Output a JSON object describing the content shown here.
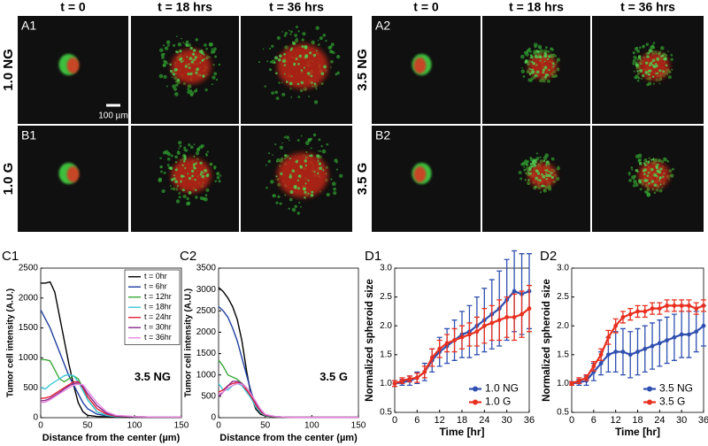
{
  "images": {
    "groups": [
      {
        "column_headers": [
          "t = 0",
          "t = 18 hrs",
          "t = 36 hrs"
        ],
        "rows": [
          {
            "condition": "1.0 NG",
            "panel": "A1"
          },
          {
            "condition": "1.0 G",
            "panel": "B1"
          }
        ],
        "scale_bar": "100 µm"
      },
      {
        "column_headers": [
          "t = 0",
          "t = 18 hrs",
          "t = 36 hrs"
        ],
        "rows": [
          {
            "condition": "3.5 NG",
            "panel": "A2"
          },
          {
            "condition": "3.5 G",
            "panel": "B2"
          }
        ]
      }
    ]
  },
  "chart_data": [
    {
      "type": "line",
      "panel": "C1",
      "annotation": "3.5 NG",
      "x_label": "Distance from the center (µm)",
      "y_label": "Tumor cell intensity (A.U.)",
      "x": [
        0,
        5,
        10,
        15,
        20,
        25,
        30,
        35,
        40,
        45,
        50,
        60,
        70,
        80,
        100,
        120,
        150
      ],
      "xlim": [
        0,
        150
      ],
      "xticks": [
        0,
        50,
        100,
        150
      ],
      "ylim": [
        0,
        2500
      ],
      "yticks": [
        0,
        500,
        1000,
        1500,
        2000,
        2500
      ],
      "legend": "upper right",
      "series": [
        {
          "name": "t = 0hr",
          "color": "#000000",
          "values": [
            2250,
            2250,
            2270,
            2100,
            1700,
            1300,
            900,
            550,
            250,
            100,
            40,
            20,
            15,
            10,
            10,
            10,
            10
          ]
        },
        {
          "name": "t = 6hr",
          "color": "#1f3f9f",
          "values": [
            1800,
            1650,
            1500,
            1300,
            1100,
            900,
            700,
            550,
            400,
            250,
            150,
            60,
            30,
            20,
            15,
            10,
            10
          ]
        },
        {
          "name": "t = 12hr",
          "color": "#3aa83a",
          "values": [
            970,
            970,
            950,
            800,
            650,
            600,
            650,
            700,
            650,
            500,
            300,
            100,
            40,
            20,
            15,
            10,
            10
          ]
        },
        {
          "name": "t = 18hr",
          "color": "#3fc8d8",
          "values": [
            500,
            480,
            550,
            600,
            650,
            700,
            720,
            700,
            600,
            450,
            300,
            100,
            40,
            20,
            15,
            10,
            10
          ]
        },
        {
          "name": "t = 24hr",
          "color": "#e0203a",
          "values": [
            320,
            330,
            350,
            400,
            450,
            500,
            550,
            600,
            600,
            500,
            350,
            150,
            60,
            25,
            15,
            10,
            10
          ]
        },
        {
          "name": "t = 30hr",
          "color": "#8a2a8a",
          "values": [
            280,
            290,
            320,
            370,
            420,
            480,
            530,
            570,
            580,
            520,
            400,
            200,
            80,
            30,
            15,
            10,
            10
          ]
        },
        {
          "name": "t = 36hr",
          "color": "#e88ae0",
          "values": [
            250,
            260,
            300,
            350,
            400,
            450,
            500,
            540,
            560,
            550,
            450,
            250,
            100,
            40,
            20,
            10,
            10
          ]
        }
      ]
    },
    {
      "type": "line",
      "panel": "C2",
      "annotation": "3.5 G",
      "x_label": "Distance from the center (µm)",
      "y_label": "Tumor cell intensity (A.U.)",
      "x": [
        0,
        5,
        10,
        15,
        20,
        25,
        30,
        35,
        40,
        45,
        50,
        60,
        70,
        80,
        100,
        120,
        150
      ],
      "xlim": [
        0,
        150
      ],
      "xticks": [
        0,
        50,
        100,
        150
      ],
      "ylim": [
        0,
        3500
      ],
      "yticks": [
        0,
        500,
        1000,
        1500,
        2000,
        2500,
        3000,
        3500
      ],
      "series": [
        {
          "color": "#000000",
          "values": [
            3050,
            2950,
            2800,
            2600,
            2300,
            1800,
            1100,
            500,
            200,
            80,
            40,
            20,
            15,
            10,
            10,
            10,
            10
          ]
        },
        {
          "color": "#1f3f9f",
          "values": [
            2600,
            2500,
            2350,
            2100,
            1800,
            1400,
            1000,
            600,
            300,
            120,
            50,
            25,
            15,
            10,
            10,
            10,
            10
          ]
        },
        {
          "color": "#3aa83a",
          "values": [
            1350,
            1200,
            1000,
            950,
            900,
            800,
            650,
            450,
            250,
            120,
            50,
            25,
            15,
            10,
            10,
            10,
            10
          ]
        },
        {
          "color": "#3fc8d8",
          "values": [
            800,
            650,
            650,
            750,
            800,
            750,
            600,
            450,
            250,
            120,
            50,
            25,
            15,
            10,
            10,
            10,
            10
          ]
        },
        {
          "color": "#e0203a",
          "values": [
            600,
            650,
            750,
            800,
            820,
            780,
            650,
            500,
            300,
            150,
            60,
            25,
            15,
            10,
            10,
            10,
            10
          ]
        },
        {
          "color": "#8a2a8a",
          "values": [
            500,
            600,
            750,
            850,
            850,
            800,
            700,
            550,
            350,
            180,
            70,
            30,
            15,
            10,
            10,
            10,
            10
          ]
        },
        {
          "color": "#e88ae0",
          "values": [
            550,
            600,
            700,
            750,
            800,
            780,
            700,
            550,
            380,
            200,
            80,
            30,
            15,
            10,
            10,
            10,
            10
          ]
        }
      ]
    },
    {
      "type": "line",
      "panel": "D1",
      "x_label": "Time [hr]",
      "y_label": "Normalized spheroid size",
      "markers": true,
      "legend": "lower right",
      "x": [
        0,
        2,
        4,
        6,
        8,
        10,
        12,
        14,
        16,
        18,
        20,
        22,
        24,
        26,
        28,
        30,
        32,
        34,
        36
      ],
      "xlim": [
        0,
        36
      ],
      "xticks": [
        0,
        6,
        12,
        18,
        24,
        30,
        36
      ],
      "ylim": [
        0.5,
        3
      ],
      "yticks": [
        0.5,
        {
          "value": 1,
          "label": "1.0"
        },
        1.5,
        {
          "value": 2,
          "label": "2.0"
        },
        2.5,
        {
          "value": 3,
          "label": "3.0"
        }
      ],
      "series": [
        {
          "name": "1.0 NG",
          "color": "#3050b0",
          "values": [
            1.0,
            1.02,
            1.05,
            1.1,
            1.2,
            1.4,
            1.55,
            1.65,
            1.75,
            1.85,
            1.9,
            2.0,
            2.1,
            2.2,
            2.3,
            2.45,
            2.6,
            2.55,
            2.6
          ],
          "errors": [
            0.05,
            0.05,
            0.08,
            0.1,
            0.15,
            0.2,
            0.25,
            0.3,
            0.35,
            0.4,
            0.45,
            0.5,
            0.55,
            0.6,
            0.65,
            0.7,
            0.7,
            0.7,
            0.65
          ]
        },
        {
          "name": "1.0 G",
          "color": "#e83020",
          "values": [
            1.0,
            1.05,
            1.08,
            1.1,
            1.2,
            1.45,
            1.6,
            1.7,
            1.75,
            1.8,
            1.85,
            1.9,
            2.0,
            2.05,
            2.1,
            2.15,
            2.15,
            2.2,
            2.3
          ],
          "errors": [
            0.05,
            0.05,
            0.05,
            0.08,
            0.1,
            0.15,
            0.15,
            0.15,
            0.2,
            0.2,
            0.2,
            0.25,
            0.3,
            0.3,
            0.35,
            0.35,
            0.4,
            0.4,
            0.4
          ]
        }
      ]
    },
    {
      "type": "line",
      "panel": "D2",
      "x_label": "Time [hr]",
      "y_label": "Normalized spheroid size",
      "markers": true,
      "legend": "lower right",
      "x": [
        0,
        2,
        4,
        6,
        8,
        10,
        12,
        14,
        16,
        18,
        20,
        22,
        24,
        26,
        28,
        30,
        32,
        34,
        36
      ],
      "xlim": [
        0,
        36
      ],
      "xticks": [
        0,
        6,
        12,
        18,
        24,
        30,
        36
      ],
      "ylim": [
        0.5,
        3
      ],
      "yticks": [
        0.5,
        {
          "value": 1,
          "label": "1.0"
        },
        1.5,
        {
          "value": 2,
          "label": "2.0"
        },
        2.5,
        {
          "value": 3,
          "label": "3.0"
        }
      ],
      "series": [
        {
          "name": "3.5 NG",
          "color": "#3050b0",
          "values": [
            1.0,
            1.02,
            1.05,
            1.2,
            1.35,
            1.5,
            1.55,
            1.55,
            1.5,
            1.55,
            1.6,
            1.65,
            1.7,
            1.75,
            1.8,
            1.85,
            1.85,
            1.9,
            2.0
          ],
          "errors": [
            0.03,
            0.05,
            0.08,
            0.15,
            0.2,
            0.3,
            0.35,
            0.4,
            0.4,
            0.4,
            0.4,
            0.4,
            0.4,
            0.4,
            0.4,
            0.4,
            0.4,
            0.35,
            0.35
          ]
        },
        {
          "name": "3.5 G",
          "color": "#e83020",
          "values": [
            1.0,
            1.05,
            1.1,
            1.3,
            1.5,
            1.8,
            2.0,
            2.15,
            2.2,
            2.25,
            2.25,
            2.3,
            2.3,
            2.35,
            2.35,
            2.35,
            2.35,
            2.3,
            2.35
          ],
          "errors": [
            0.03,
            0.05,
            0.05,
            0.08,
            0.1,
            0.12,
            0.12,
            0.1,
            0.1,
            0.1,
            0.1,
            0.1,
            0.1,
            0.1,
            0.1,
            0.1,
            0.1,
            0.1,
            0.1
          ]
        }
      ]
    }
  ]
}
